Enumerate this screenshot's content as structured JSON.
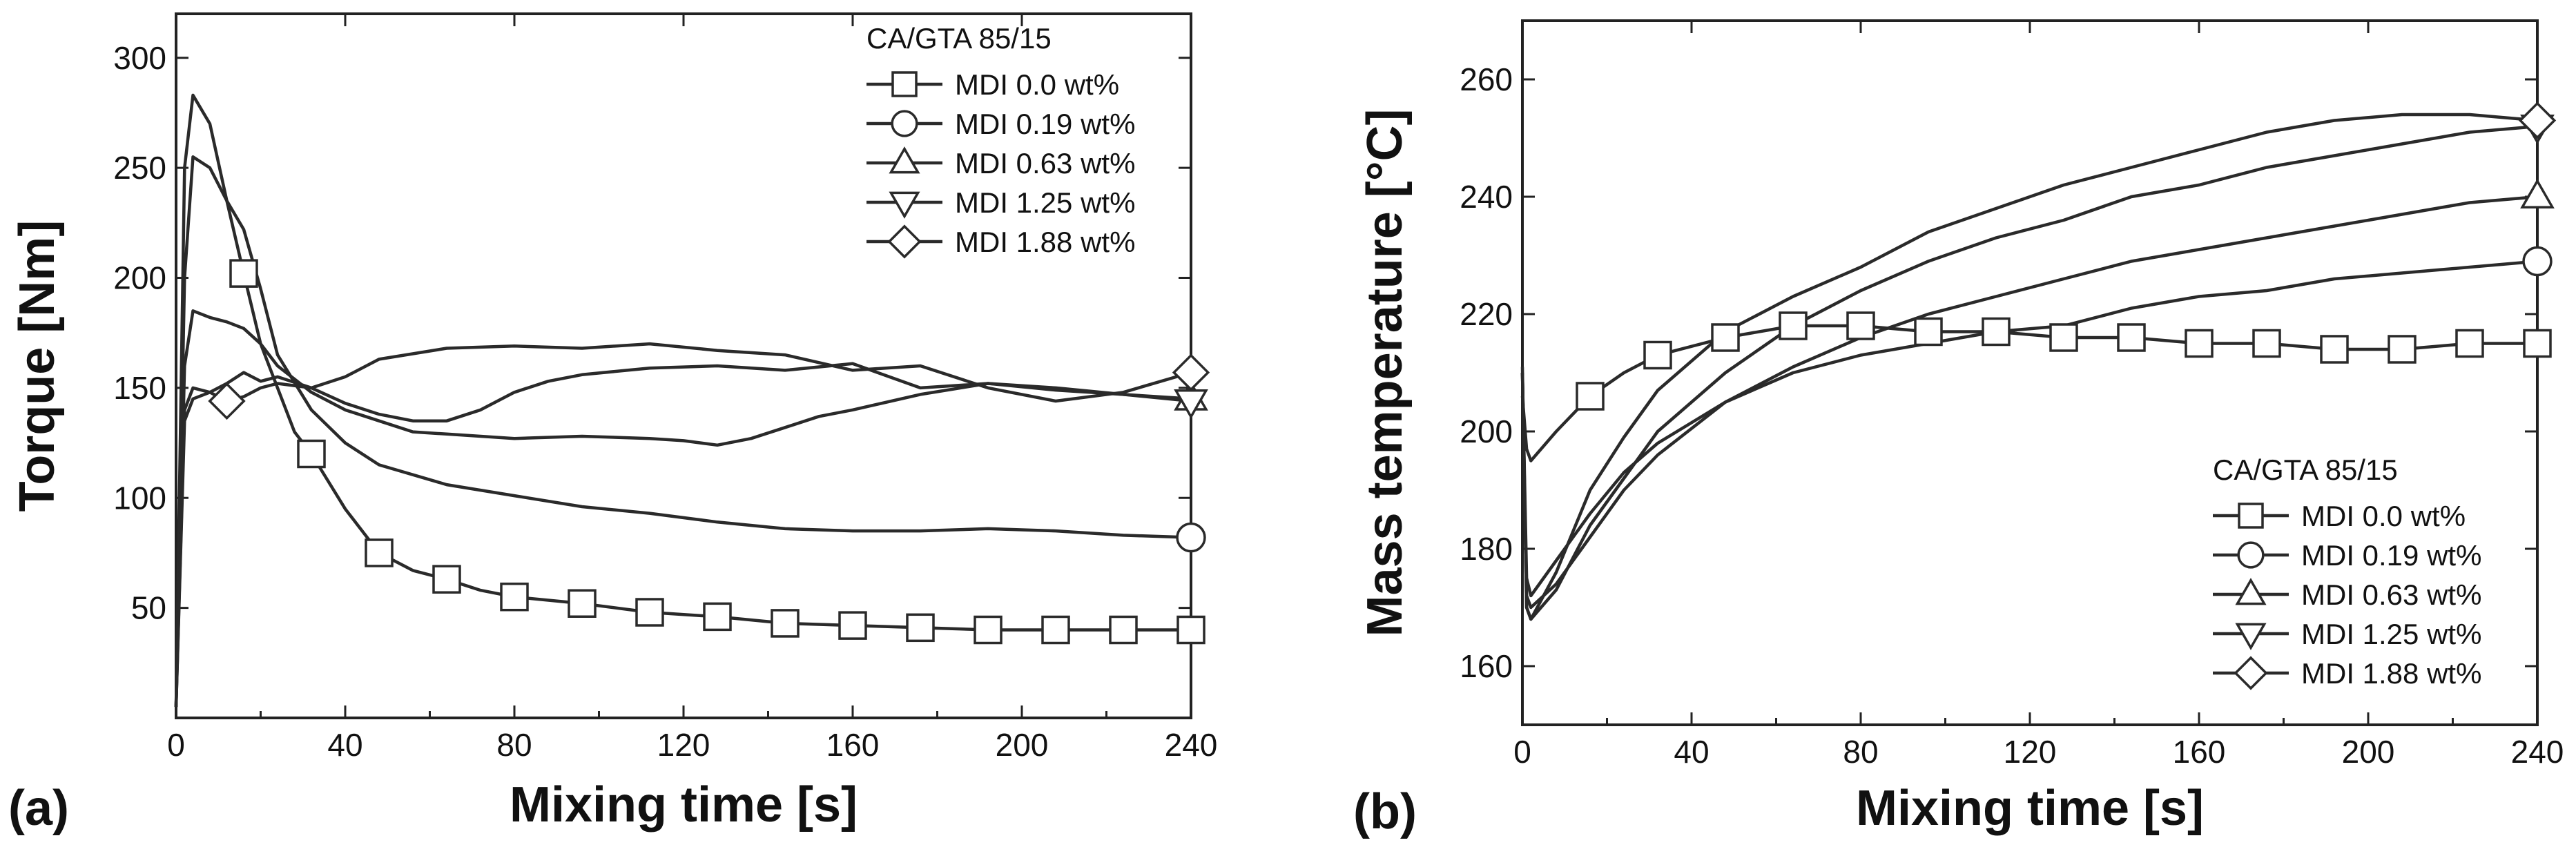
{
  "chart_data": [
    {
      "type": "line",
      "panel_label": "(a)",
      "xlabel": "Mixing time [s]",
      "ylabel": "Torque [Nm]",
      "xlim": [
        0,
        240
      ],
      "ylim": [
        0,
        320
      ],
      "xticks": [
        0,
        40,
        80,
        120,
        160,
        200,
        240
      ],
      "yticks": [
        50,
        100,
        150,
        200,
        250,
        300
      ],
      "legend_title": "CA/GTA 85/15",
      "legend_position": "top-right",
      "series": [
        {
          "name": "MDI 0.0 wt%",
          "marker": "square",
          "x": [
            0,
            2,
            4,
            8,
            12,
            16,
            20,
            24,
            28,
            32,
            40,
            48,
            56,
            64,
            72,
            80,
            96,
            112,
            128,
            144,
            160,
            176,
            192,
            208,
            224,
            240
          ],
          "y": [
            5,
            250,
            283,
            270,
            235,
            202,
            170,
            150,
            130,
            120,
            95,
            75,
            67,
            63,
            58,
            55,
            52,
            48,
            46,
            43,
            42,
            41,
            40,
            40,
            40,
            40
          ]
        },
        {
          "name": "MDI 0.19 wt%",
          "marker": "circle",
          "x": [
            0,
            2,
            4,
            8,
            12,
            16,
            20,
            24,
            32,
            40,
            48,
            64,
            80,
            96,
            112,
            128,
            144,
            160,
            176,
            192,
            208,
            224,
            240
          ],
          "y": [
            5,
            200,
            255,
            250,
            235,
            222,
            195,
            165,
            140,
            125,
            115,
            106,
            101,
            96,
            93,
            89,
            86,
            85,
            85,
            86,
            85,
            83,
            82
          ]
        },
        {
          "name": "MDI 0.63 wt%",
          "marker": "triangle-up",
          "x": [
            0,
            2,
            4,
            8,
            12,
            16,
            20,
            24,
            32,
            40,
            48,
            56,
            64,
            72,
            80,
            96,
            112,
            120,
            128,
            136,
            144,
            152,
            160,
            176,
            192,
            208,
            224,
            240
          ],
          "y": [
            5,
            160,
            185,
            182,
            180,
            177,
            170,
            160,
            148,
            140,
            135,
            130,
            129,
            128,
            127,
            128,
            127,
            126,
            124,
            127,
            132,
            137,
            140,
            147,
            152,
            150,
            147,
            145
          ]
        },
        {
          "name": "MDI 1.25 wt%",
          "marker": "triangle-down",
          "x": [
            0,
            2,
            4,
            8,
            12,
            16,
            20,
            24,
            32,
            40,
            48,
            56,
            64,
            72,
            80,
            88,
            96,
            112,
            128,
            144,
            160,
            176,
            192,
            208,
            224,
            240
          ],
          "y": [
            5,
            140,
            150,
            148,
            152,
            157,
            153,
            155,
            150,
            143,
            138,
            135,
            135,
            140,
            148,
            153,
            156,
            159,
            160,
            158,
            161,
            150,
            152,
            149,
            147,
            144
          ]
        },
        {
          "name": "MDI 1.88 wt%",
          "marker": "diamond",
          "x": [
            0,
            2,
            4,
            8,
            12,
            16,
            20,
            24,
            32,
            40,
            48,
            64,
            80,
            96,
            112,
            128,
            144,
            160,
            176,
            192,
            208,
            224,
            240
          ],
          "y": [
            5,
            135,
            145,
            148,
            144,
            146,
            150,
            152,
            150,
            155,
            163,
            168,
            169,
            168,
            170,
            167,
            165,
            158,
            160,
            150,
            144,
            148,
            157
          ]
        }
      ]
    },
    {
      "type": "line",
      "panel_label": "(b)",
      "xlabel": "Mixing time [s]",
      "ylabel": "Mass temperature [°C]",
      "xlim": [
        0,
        240
      ],
      "ylim": [
        150,
        270
      ],
      "xticks": [
        0,
        40,
        80,
        120,
        160,
        200,
        240
      ],
      "yticks": [
        160,
        180,
        200,
        220,
        240,
        260
      ],
      "legend_title": "CA/GTA 85/15",
      "legend_position": "bottom-right",
      "series": [
        {
          "name": "MDI 0.0 wt%",
          "marker": "square",
          "x": [
            0,
            1,
            2,
            8,
            16,
            24,
            32,
            48,
            64,
            80,
            96,
            112,
            128,
            144,
            160,
            176,
            192,
            208,
            224,
            240
          ],
          "y": [
            206,
            197,
            195,
            200,
            206,
            210,
            213,
            216,
            218,
            218,
            217,
            217,
            216,
            216,
            215,
            215,
            214,
            214,
            215,
            215
          ]
        },
        {
          "name": "MDI 0.19 wt%",
          "marker": "circle",
          "x": [
            0,
            1,
            2,
            8,
            16,
            24,
            32,
            48,
            64,
            80,
            96,
            112,
            128,
            144,
            160,
            176,
            192,
            208,
            224,
            240
          ],
          "y": [
            210,
            175,
            172,
            178,
            186,
            193,
            198,
            205,
            210,
            213,
            215,
            217,
            218,
            221,
            223,
            224,
            226,
            227,
            228,
            229
          ]
        },
        {
          "name": "MDI 0.63 wt%",
          "marker": "triangle-up",
          "x": [
            0,
            1,
            2,
            8,
            16,
            24,
            32,
            48,
            64,
            80,
            96,
            112,
            128,
            144,
            160,
            176,
            192,
            208,
            224,
            240
          ],
          "y": [
            210,
            172,
            170,
            174,
            182,
            190,
            196,
            205,
            211,
            216,
            220,
            223,
            226,
            229,
            231,
            233,
            235,
            237,
            239,
            240
          ]
        },
        {
          "name": "MDI 1.25 wt%",
          "marker": "triangle-down",
          "x": [
            0,
            1,
            2,
            8,
            16,
            24,
            32,
            48,
            64,
            80,
            96,
            112,
            128,
            144,
            160,
            176,
            192,
            208,
            224,
            240
          ],
          "y": [
            210,
            170,
            168,
            173,
            184,
            192,
            200,
            210,
            218,
            224,
            229,
            233,
            236,
            240,
            242,
            245,
            247,
            249,
            251,
            252
          ]
        },
        {
          "name": "MDI 1.88 wt%",
          "marker": "diamond",
          "x": [
            0,
            1,
            2,
            8,
            16,
            24,
            32,
            48,
            64,
            80,
            96,
            112,
            128,
            144,
            160,
            176,
            192,
            208,
            224,
            240
          ],
          "y": [
            211,
            170,
            168,
            176,
            190,
            199,
            207,
            217,
            223,
            228,
            234,
            238,
            242,
            245,
            248,
            251,
            253,
            254,
            254,
            253
          ]
        }
      ]
    }
  ]
}
